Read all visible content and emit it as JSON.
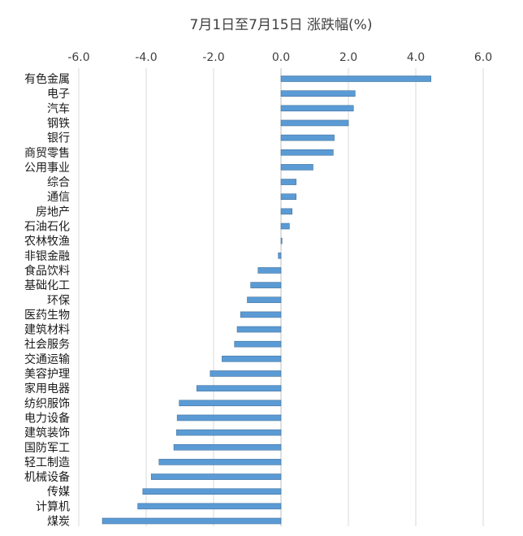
{
  "chart_data": {
    "type": "bar",
    "orientation": "horizontal",
    "title": "7月1日至7月15日 涨跌幅(%)",
    "xlim": [
      -6.0,
      6.0
    ],
    "xticks": [
      -6.0,
      -4.0,
      -2.0,
      0.0,
      2.0,
      4.0,
      6.0
    ],
    "tick_labels": [
      "-6.0",
      "-4.0",
      "-2.0",
      "0.0",
      "2.0",
      "4.0",
      "6.0"
    ],
    "grid": true,
    "bar_color": "#5b9bd5",
    "categories": [
      "有色金属",
      "电子",
      "汽车",
      "钢铁",
      "银行",
      "商贸零售",
      "公用事业",
      "综合",
      "通信",
      "房地产",
      "石油石化",
      "农林牧渔",
      "非银金融",
      "食品饮料",
      "基础化工",
      "环保",
      "医药生物",
      "建筑材料",
      "社会服务",
      "交通运输",
      "美容护理",
      "家用电器",
      "纺织服饰",
      "电力设备",
      "建筑装饰",
      "国防军工",
      "轻工制造",
      "机械设备",
      "传媒",
      "计算机",
      "煤炭"
    ],
    "values": [
      4.45,
      2.2,
      2.15,
      2.0,
      1.58,
      1.55,
      0.95,
      0.45,
      0.45,
      0.33,
      0.25,
      0.03,
      -0.08,
      -0.68,
      -0.9,
      -1.0,
      -1.2,
      -1.3,
      -1.38,
      -1.75,
      -2.1,
      -2.5,
      -3.02,
      -3.08,
      -3.1,
      -3.18,
      -3.62,
      -3.85,
      -4.1,
      -4.25,
      -5.3
    ]
  }
}
